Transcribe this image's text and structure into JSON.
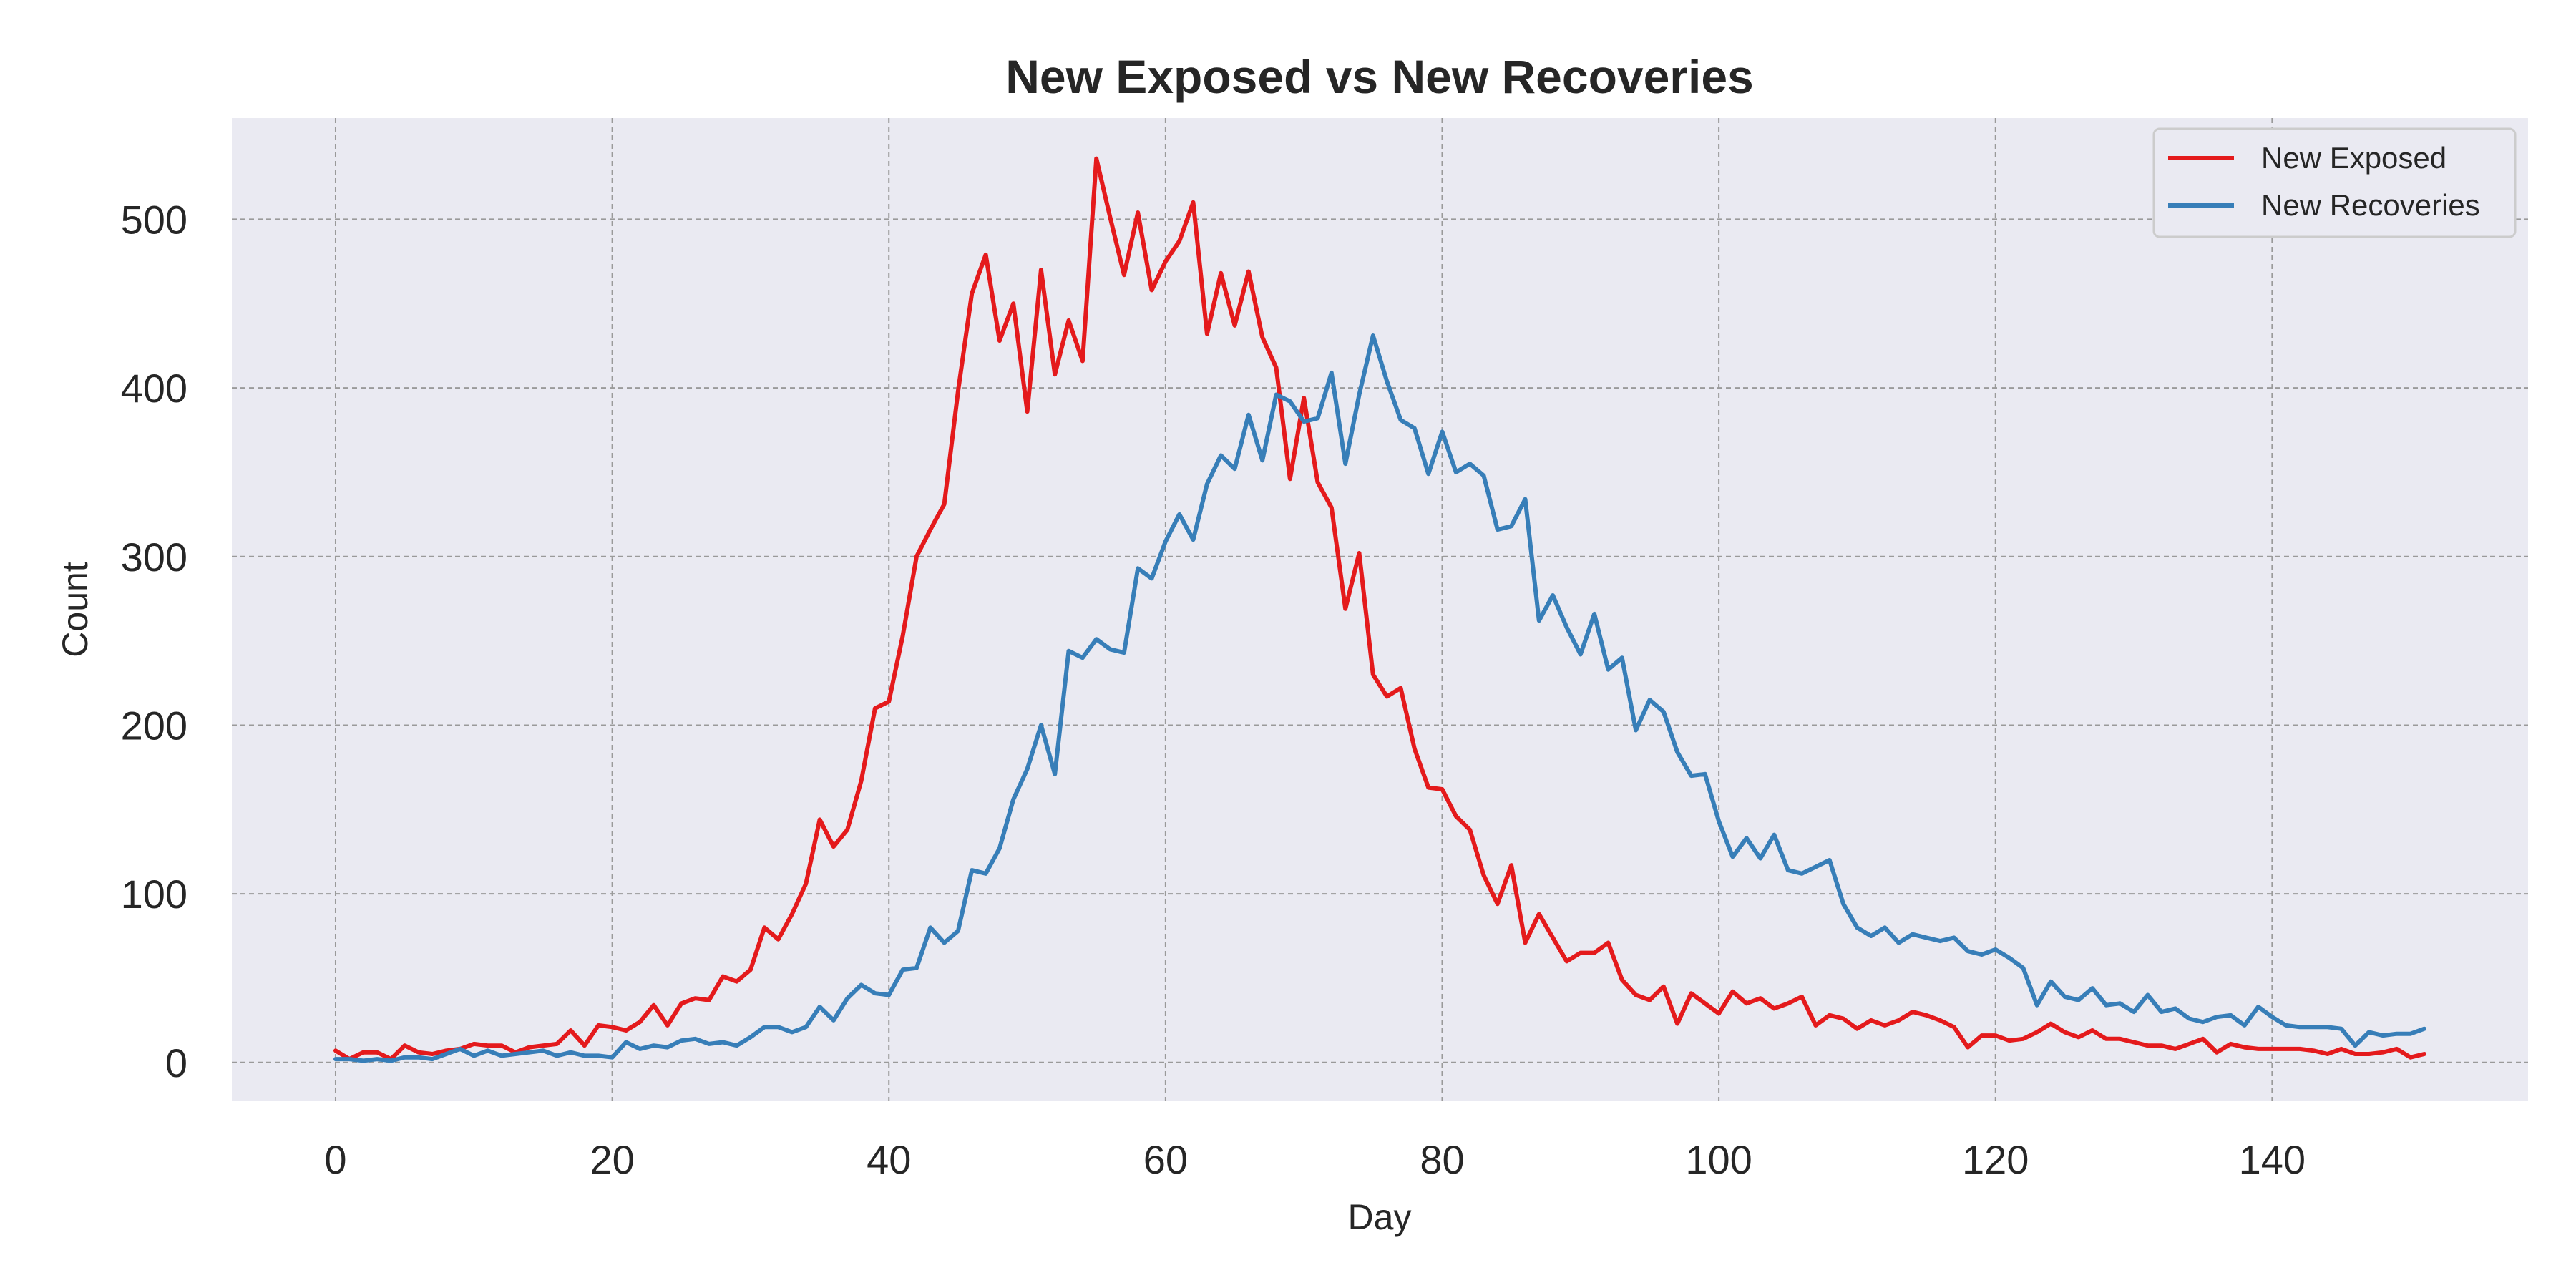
{
  "chart_data": {
    "type": "line",
    "title": "New Exposed vs New Recoveries",
    "xlabel": "Day",
    "ylabel": "Count",
    "xlim": [
      -7.5,
      158.5
    ],
    "ylim": [
      -23,
      560
    ],
    "xticks": [
      0,
      20,
      40,
      60,
      80,
      100,
      120,
      140
    ],
    "yticks": [
      0,
      100,
      200,
      300,
      400,
      500
    ],
    "grid": true,
    "legend_position": "top-right",
    "series": [
      {
        "name": "New Exposed",
        "color": "#e41a1c",
        "values": [
          7,
          2,
          6,
          6,
          2,
          10,
          6,
          5,
          7,
          8,
          11,
          10,
          10,
          6,
          9,
          10,
          11,
          19,
          10,
          22,
          21,
          19,
          24,
          34,
          22,
          35,
          38,
          37,
          51,
          48,
          55,
          80,
          73,
          88,
          106,
          144,
          128,
          138,
          167,
          210,
          214,
          253,
          300,
          316,
          331,
          398,
          456,
          479,
          428,
          450,
          386,
          470,
          408,
          440,
          416,
          536,
          501,
          467,
          504,
          458,
          475,
          487,
          510,
          432,
          468,
          437,
          469,
          430,
          412,
          346,
          394,
          344,
          329,
          269,
          302,
          230,
          217,
          222,
          186,
          163,
          162,
          146,
          138,
          111,
          94,
          117,
          71,
          88,
          74,
          60,
          65,
          65,
          71,
          49,
          40,
          37,
          45,
          23,
          41,
          35,
          29,
          42,
          35,
          38,
          32,
          35,
          39,
          22,
          28,
          26,
          20,
          25,
          22,
          25,
          30,
          28,
          25,
          21,
          9,
          16,
          16,
          13,
          14,
          18,
          23,
          18,
          15,
          19,
          14,
          14,
          12,
          10,
          10,
          8,
          11,
          14,
          6,
          11,
          9,
          8,
          8,
          8,
          8,
          7,
          5,
          8,
          5,
          5,
          6,
          8,
          3,
          5
        ]
      },
      {
        "name": "New Recoveries",
        "color": "#377eb8",
        "values": [
          2,
          2,
          1,
          2,
          1,
          3,
          3,
          2,
          5,
          8,
          4,
          7,
          4,
          5,
          6,
          7,
          4,
          6,
          4,
          4,
          3,
          12,
          8,
          10,
          9,
          13,
          14,
          11,
          12,
          10,
          15,
          21,
          21,
          18,
          21,
          33,
          25,
          38,
          46,
          41,
          40,
          55,
          56,
          80,
          71,
          78,
          114,
          112,
          127,
          156,
          174,
          200,
          171,
          244,
          240,
          251,
          245,
          243,
          293,
          287,
          309,
          325,
          310,
          343,
          360,
          352,
          384,
          357,
          396,
          392,
          380,
          382,
          409,
          355,
          396,
          431,
          404,
          381,
          376,
          349,
          374,
          350,
          355,
          348,
          316,
          318,
          334,
          262,
          277,
          258,
          242,
          266,
          233,
          240,
          197,
          215,
          208,
          184,
          170,
          171,
          143,
          122,
          133,
          121,
          135,
          114,
          112,
          116,
          120,
          94,
          80,
          75,
          80,
          71,
          76,
          74,
          72,
          74,
          66,
          64,
          67,
          62,
          56,
          34,
          48,
          39,
          37,
          44,
          34,
          35,
          30,
          40,
          30,
          32,
          26,
          24,
          27,
          28,
          22,
          33,
          27,
          22,
          21,
          21,
          21,
          20,
          10,
          18,
          16,
          17,
          17,
          20
        ]
      }
    ]
  }
}
